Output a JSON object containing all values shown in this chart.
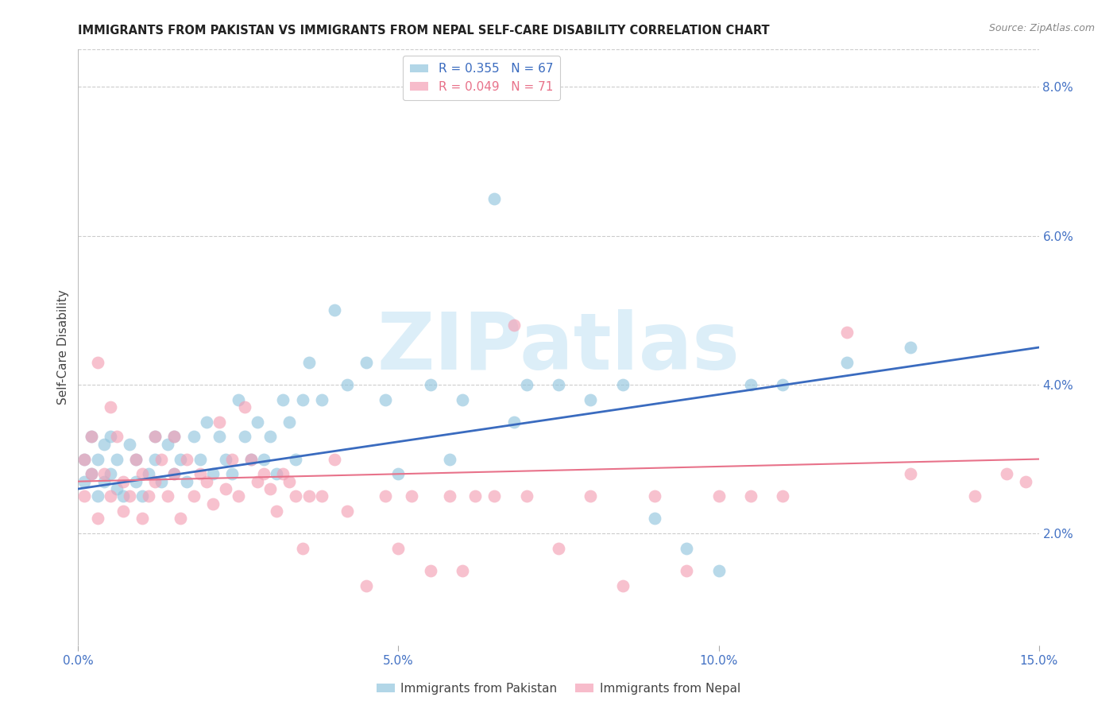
{
  "title": "IMMIGRANTS FROM PAKISTAN VS IMMIGRANTS FROM NEPAL SELF-CARE DISABILITY CORRELATION CHART",
  "source": "Source: ZipAtlas.com",
  "ylabel": "Self-Care Disability",
  "xlim": [
    0.0,
    0.15
  ],
  "ylim": [
    0.005,
    0.085
  ],
  "xticks": [
    0.0,
    0.05,
    0.1,
    0.15
  ],
  "xticklabels": [
    "0.0%",
    "5.0%",
    "10.0%",
    "15.0%"
  ],
  "yticks_right": [
    0.02,
    0.04,
    0.06,
    0.08
  ],
  "ytick_right_labels": [
    "2.0%",
    "4.0%",
    "6.0%",
    "8.0%"
  ],
  "pakistan_color": "#92c5de",
  "nepal_color": "#f4a0b5",
  "pakistan_R": 0.355,
  "pakistan_N": 67,
  "nepal_R": 0.049,
  "nepal_N": 71,
  "trend_blue": "#3a6bbf",
  "trend_pink": "#e8728a",
  "watermark": "ZIPatlas",
  "watermark_color": "#dceef8",
  "background_color": "#ffffff",
  "legend_label_pakistan": "Immigrants from Pakistan",
  "legend_label_nepal": "Immigrants from Nepal",
  "pakistan_x": [
    0.001,
    0.001,
    0.002,
    0.002,
    0.003,
    0.003,
    0.004,
    0.004,
    0.005,
    0.005,
    0.006,
    0.006,
    0.007,
    0.008,
    0.009,
    0.009,
    0.01,
    0.011,
    0.012,
    0.012,
    0.013,
    0.014,
    0.015,
    0.015,
    0.016,
    0.017,
    0.018,
    0.019,
    0.02,
    0.021,
    0.022,
    0.023,
    0.024,
    0.025,
    0.026,
    0.027,
    0.028,
    0.029,
    0.03,
    0.031,
    0.032,
    0.033,
    0.034,
    0.035,
    0.036,
    0.038,
    0.04,
    0.042,
    0.045,
    0.048,
    0.05,
    0.055,
    0.058,
    0.06,
    0.065,
    0.068,
    0.07,
    0.075,
    0.08,
    0.085,
    0.09,
    0.095,
    0.1,
    0.105,
    0.11,
    0.12,
    0.13
  ],
  "pakistan_y": [
    0.027,
    0.03,
    0.028,
    0.033,
    0.025,
    0.03,
    0.027,
    0.032,
    0.028,
    0.033,
    0.026,
    0.03,
    0.025,
    0.032,
    0.027,
    0.03,
    0.025,
    0.028,
    0.033,
    0.03,
    0.027,
    0.032,
    0.028,
    0.033,
    0.03,
    0.027,
    0.033,
    0.03,
    0.035,
    0.028,
    0.033,
    0.03,
    0.028,
    0.038,
    0.033,
    0.03,
    0.035,
    0.03,
    0.033,
    0.028,
    0.038,
    0.035,
    0.03,
    0.038,
    0.043,
    0.038,
    0.05,
    0.04,
    0.043,
    0.038,
    0.028,
    0.04,
    0.03,
    0.038,
    0.065,
    0.035,
    0.04,
    0.04,
    0.038,
    0.04,
    0.022,
    0.018,
    0.015,
    0.04,
    0.04,
    0.043,
    0.045
  ],
  "nepal_x": [
    0.001,
    0.001,
    0.002,
    0.002,
    0.003,
    0.003,
    0.004,
    0.005,
    0.005,
    0.006,
    0.007,
    0.007,
    0.008,
    0.009,
    0.01,
    0.01,
    0.011,
    0.012,
    0.012,
    0.013,
    0.014,
    0.015,
    0.015,
    0.016,
    0.017,
    0.018,
    0.019,
    0.02,
    0.021,
    0.022,
    0.023,
    0.024,
    0.025,
    0.026,
    0.027,
    0.028,
    0.029,
    0.03,
    0.031,
    0.032,
    0.033,
    0.034,
    0.035,
    0.036,
    0.038,
    0.04,
    0.042,
    0.045,
    0.048,
    0.05,
    0.052,
    0.055,
    0.058,
    0.06,
    0.062,
    0.065,
    0.068,
    0.07,
    0.075,
    0.08,
    0.085,
    0.09,
    0.095,
    0.1,
    0.105,
    0.11,
    0.12,
    0.13,
    0.14,
    0.145,
    0.148
  ],
  "nepal_y": [
    0.025,
    0.03,
    0.028,
    0.033,
    0.043,
    0.022,
    0.028,
    0.025,
    0.037,
    0.033,
    0.023,
    0.027,
    0.025,
    0.03,
    0.022,
    0.028,
    0.025,
    0.033,
    0.027,
    0.03,
    0.025,
    0.033,
    0.028,
    0.022,
    0.03,
    0.025,
    0.028,
    0.027,
    0.024,
    0.035,
    0.026,
    0.03,
    0.025,
    0.037,
    0.03,
    0.027,
    0.028,
    0.026,
    0.023,
    0.028,
    0.027,
    0.025,
    0.018,
    0.025,
    0.025,
    0.03,
    0.023,
    0.013,
    0.025,
    0.018,
    0.025,
    0.015,
    0.025,
    0.015,
    0.025,
    0.025,
    0.048,
    0.025,
    0.018,
    0.025,
    0.013,
    0.025,
    0.015,
    0.025,
    0.025,
    0.025,
    0.047,
    0.028,
    0.025,
    0.028,
    0.027
  ]
}
